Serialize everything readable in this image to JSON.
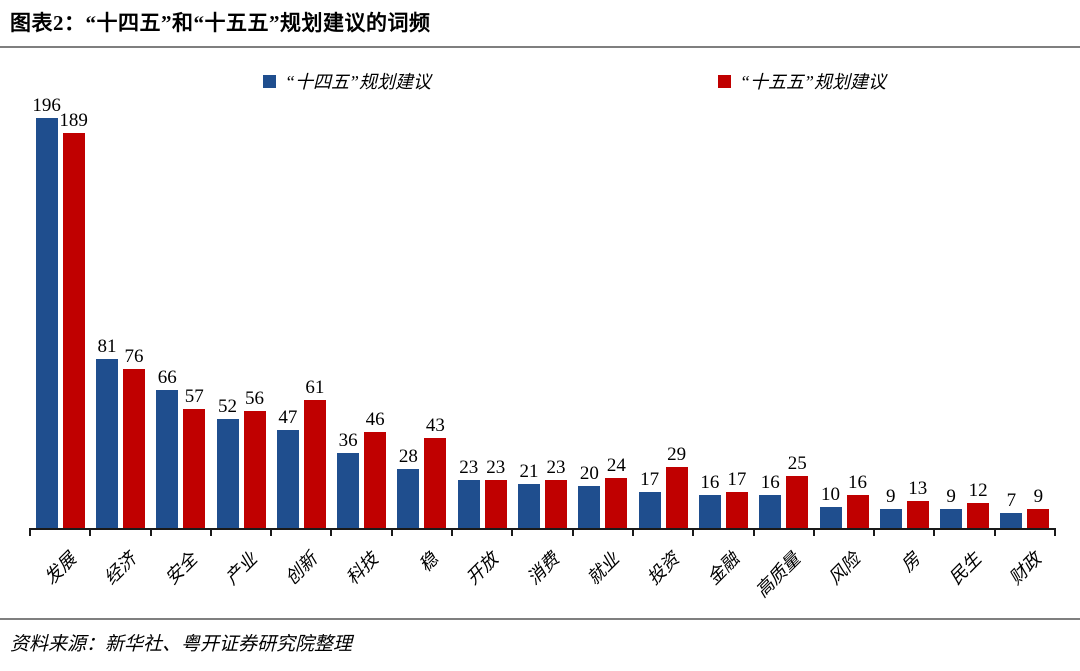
{
  "header": {
    "title": "图表2：“十四五”和“十五五”规划建议的词频"
  },
  "chart_data": {
    "type": "bar",
    "title": "“十四五”和“十五五”规划建议的词频",
    "categories": [
      "发展",
      "经济",
      "安全",
      "产业",
      "创新",
      "科技",
      "稳",
      "开放",
      "消费",
      "就业",
      "投资",
      "金融",
      "高质量",
      "风险",
      "房",
      "民生",
      "财政"
    ],
    "series": [
      {
        "name": "“十四五”规划建议",
        "color": "#1F4E8E",
        "values": [
          196,
          81,
          66,
          52,
          47,
          36,
          28,
          23,
          21,
          20,
          17,
          16,
          16,
          10,
          9,
          9,
          7
        ]
      },
      {
        "name": "“十五五”规划建议",
        "color": "#C00000",
        "values": [
          189,
          76,
          57,
          56,
          61,
          46,
          43,
          23,
          23,
          24,
          29,
          17,
          25,
          16,
          13,
          12,
          9
        ]
      }
    ],
    "ylim": [
      0,
      196
    ],
    "grid": false,
    "legend_position": "top",
    "data_labels": true,
    "xlabel": "",
    "ylabel": ""
  },
  "footer": {
    "source": "资料来源：新华社、粤开证券研究院整理"
  },
  "colors": {
    "series1": "#1F4E8E",
    "series2": "#C00000",
    "axis": "#1a1a1a",
    "rule": "#7f7f7f",
    "text": "#000000"
  }
}
